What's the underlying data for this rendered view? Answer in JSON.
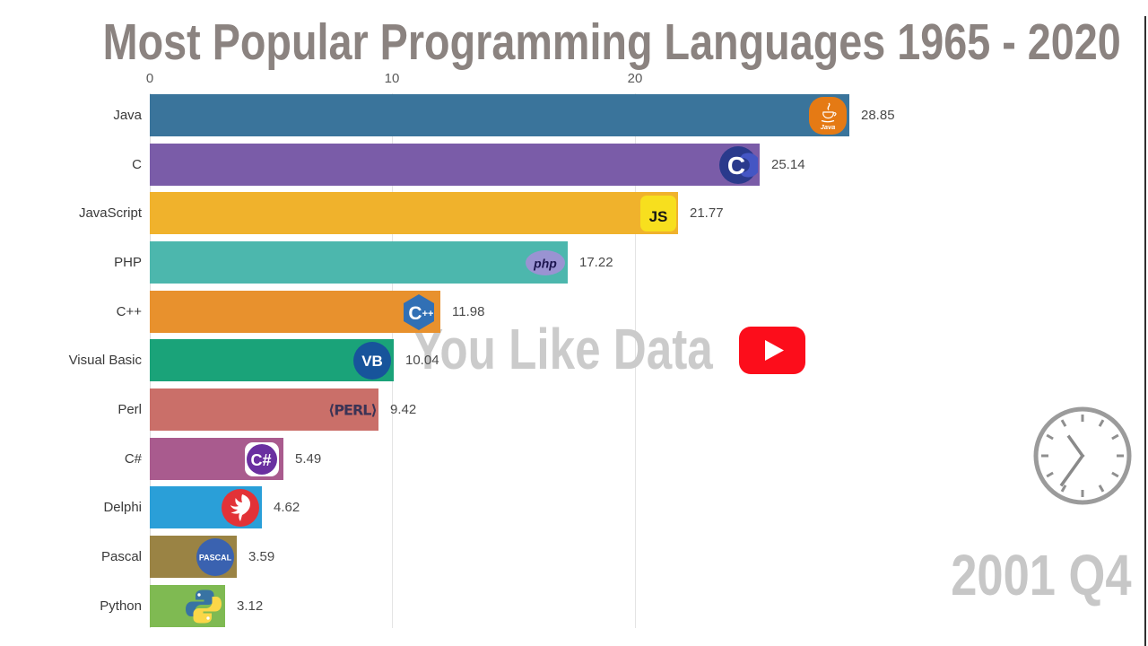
{
  "title": "Most Popular Programming Languages 1965 - 2020",
  "period_label": "2001 Q4",
  "watermark": {
    "text": "You Like Data",
    "icon": "youtube-play-icon"
  },
  "decorations": {
    "clock_icon": "analog-clock-icon",
    "clock_color": "#979797",
    "watermark_color": "#cbcbcb",
    "title_color": "#8b8380",
    "youtube_red": "#fc0d1b"
  },
  "chart_data": {
    "type": "bar",
    "orientation": "horizontal",
    "title": "Most Popular Programming Languages 1965 - 2020",
    "xlabel": "",
    "ylabel": "",
    "x_ticks": [
      "0",
      "10",
      "20"
    ],
    "xlim": [
      0,
      41
    ],
    "grid": "vertical gridlines at 0, 10, 20",
    "legend": "none",
    "categories": [
      "Java",
      "C",
      "JavaScript",
      "PHP",
      "C++",
      "Visual Basic",
      "Perl",
      "C#",
      "Delphi",
      "Pascal",
      "Python"
    ],
    "values": [
      28.85,
      25.14,
      21.77,
      17.22,
      11.98,
      10.04,
      9.42,
      5.49,
      4.62,
      3.59,
      3.12
    ],
    "bars": [
      {
        "label": "Java",
        "value": 28.85,
        "display": "28.85",
        "color": "#3a749b",
        "icon": "java-logo-icon"
      },
      {
        "label": "C",
        "value": 25.14,
        "display": "25.14",
        "color": "#7a5ca8",
        "icon": "c-logo-icon"
      },
      {
        "label": "JavaScript",
        "value": 21.77,
        "display": "21.77",
        "color": "#f0b22c",
        "icon": "javascript-logo-icon"
      },
      {
        "label": "PHP",
        "value": 17.22,
        "display": "17.22",
        "color": "#4cb7ad",
        "icon": "php-logo-icon"
      },
      {
        "label": "C++",
        "value": 11.98,
        "display": "11.98",
        "color": "#e8912d",
        "icon": "cpp-logo-icon"
      },
      {
        "label": "Visual Basic",
        "value": 10.04,
        "display": "10.04",
        "color": "#1aa379",
        "icon": "visual-basic-logo-icon"
      },
      {
        "label": "Perl",
        "value": 9.42,
        "display": "9.42",
        "color": "#ca6f69",
        "icon": "perl-text-logo-icon"
      },
      {
        "label": "C#",
        "value": 5.49,
        "display": "5.49",
        "color": "#a95b8e",
        "icon": "csharp-logo-icon"
      },
      {
        "label": "Delphi",
        "value": 4.62,
        "display": "4.62",
        "color": "#2a9fd8",
        "icon": "delphi-logo-icon"
      },
      {
        "label": "Pascal",
        "value": 3.59,
        "display": "3.59",
        "color": "#9a8344",
        "icon": "pascal-logo-icon"
      },
      {
        "label": "Python",
        "value": 3.12,
        "display": "3.12",
        "color": "#7fba52",
        "icon": "python-logo-icon"
      }
    ]
  }
}
